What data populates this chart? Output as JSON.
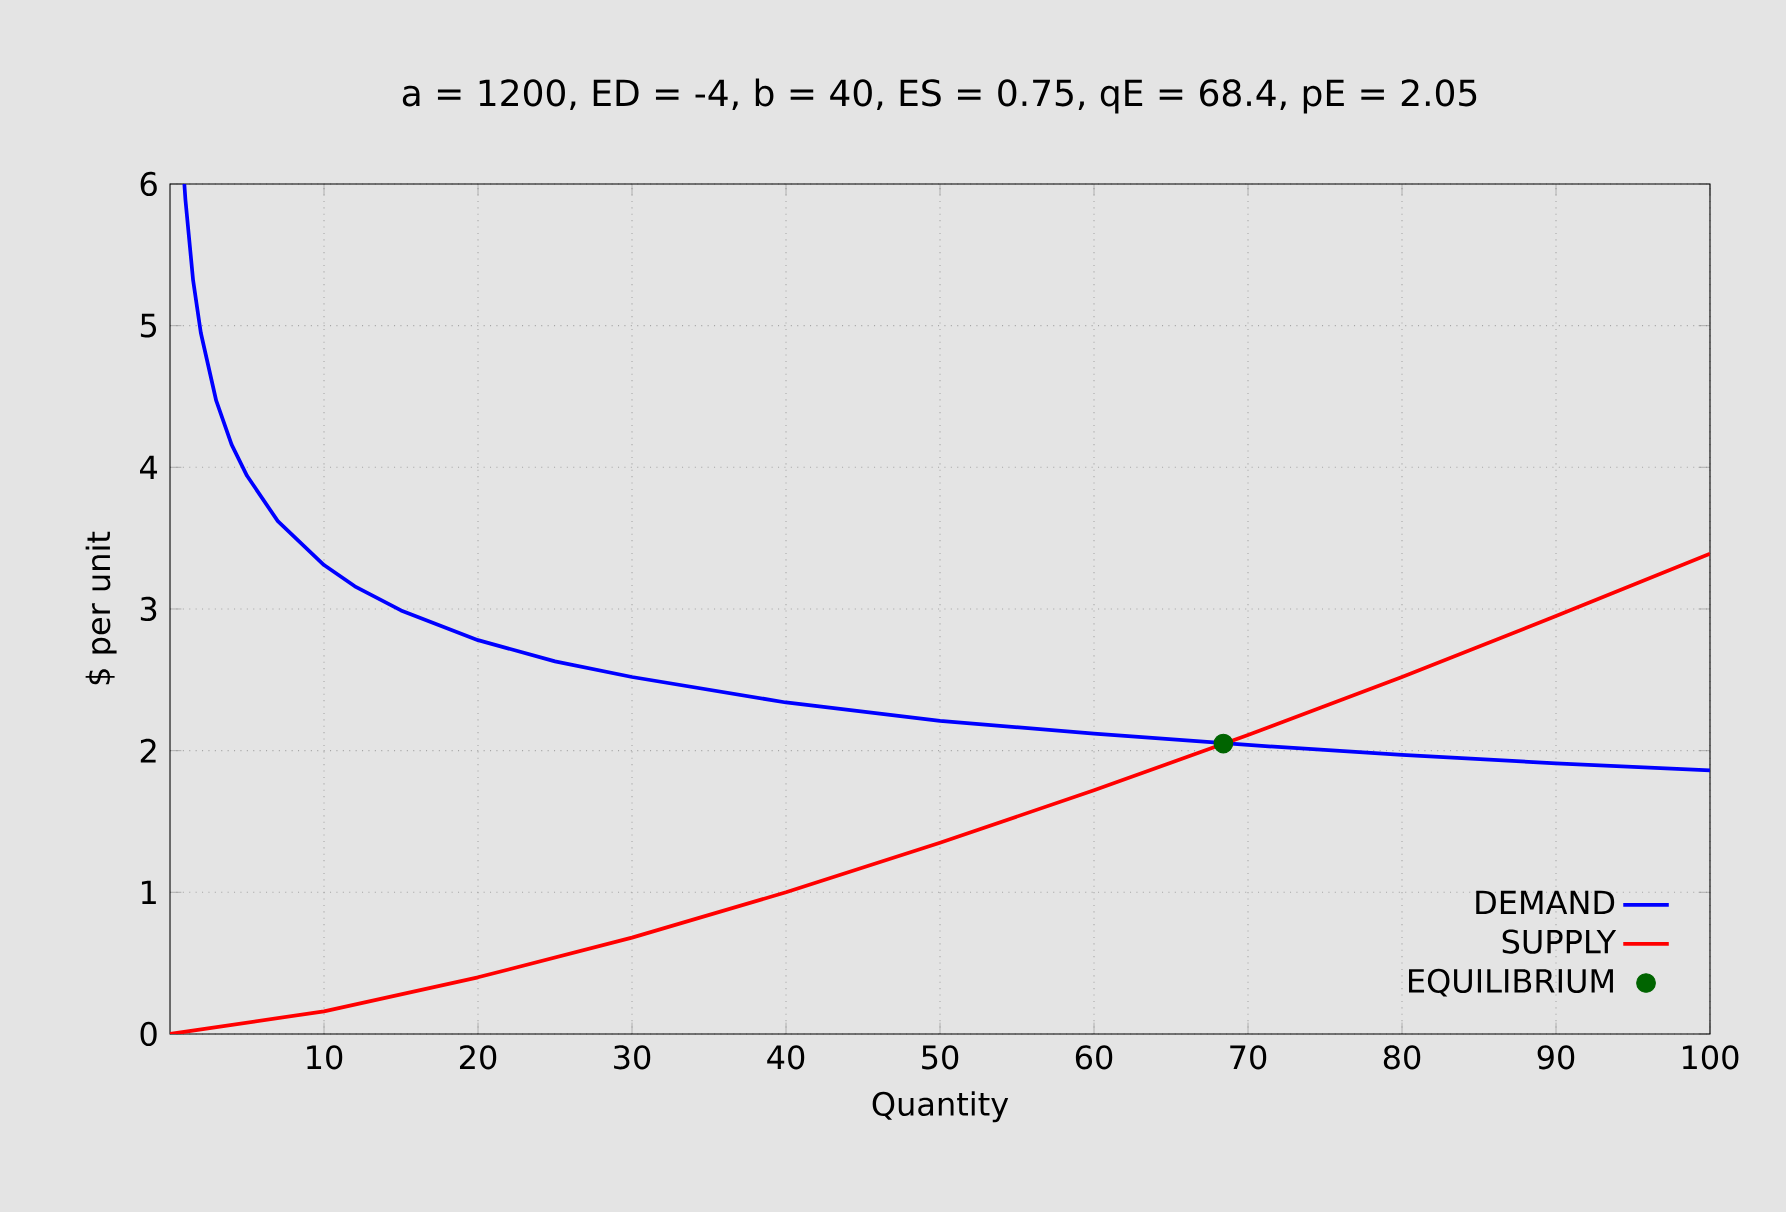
{
  "chart_data": {
    "type": "line",
    "title": "a = 1200, ED = -4,   b = 40, ES = 0.75, qE = 68.4, pE = 2.05",
    "xlabel": "Quantity",
    "ylabel": "$ per unit",
    "xlim": [
      0,
      100
    ],
    "ylim": [
      0,
      6
    ],
    "xticks": [
      10,
      20,
      30,
      40,
      50,
      60,
      70,
      80,
      90,
      100
    ],
    "yticks": [
      0,
      1,
      2,
      3,
      4,
      5,
      6
    ],
    "grid": true,
    "legend": "bottom right",
    "series": [
      {
        "name": "DEMAND",
        "color": "#0000ff",
        "marker": "none",
        "x": [
          0.93,
          1,
          1.5,
          2,
          3,
          4,
          5,
          7,
          10,
          12,
          15,
          20,
          25,
          30,
          40,
          50,
          60,
          70,
          80,
          90,
          100
        ],
        "values": [
          6,
          5.89,
          5.32,
          4.95,
          4.47,
          4.16,
          3.94,
          3.62,
          3.31,
          3.16,
          2.99,
          2.78,
          2.63,
          2.52,
          2.34,
          2.21,
          2.12,
          2.04,
          1.97,
          1.91,
          1.86
        ]
      },
      {
        "name": "SUPPLY",
        "color": "#ff0000",
        "marker": "none",
        "x": [
          0,
          10,
          20,
          30,
          40,
          50,
          60,
          70,
          80,
          90,
          100
        ],
        "values": [
          0,
          0.16,
          0.4,
          0.68,
          1,
          1.35,
          1.72,
          2.11,
          2.52,
          2.95,
          3.39
        ]
      },
      {
        "name": "EQUILIBRIUM",
        "color": "#006400",
        "type": "scatter",
        "marker": "circle",
        "x": [
          68.4
        ],
        "values": [
          2.05
        ]
      }
    ]
  }
}
